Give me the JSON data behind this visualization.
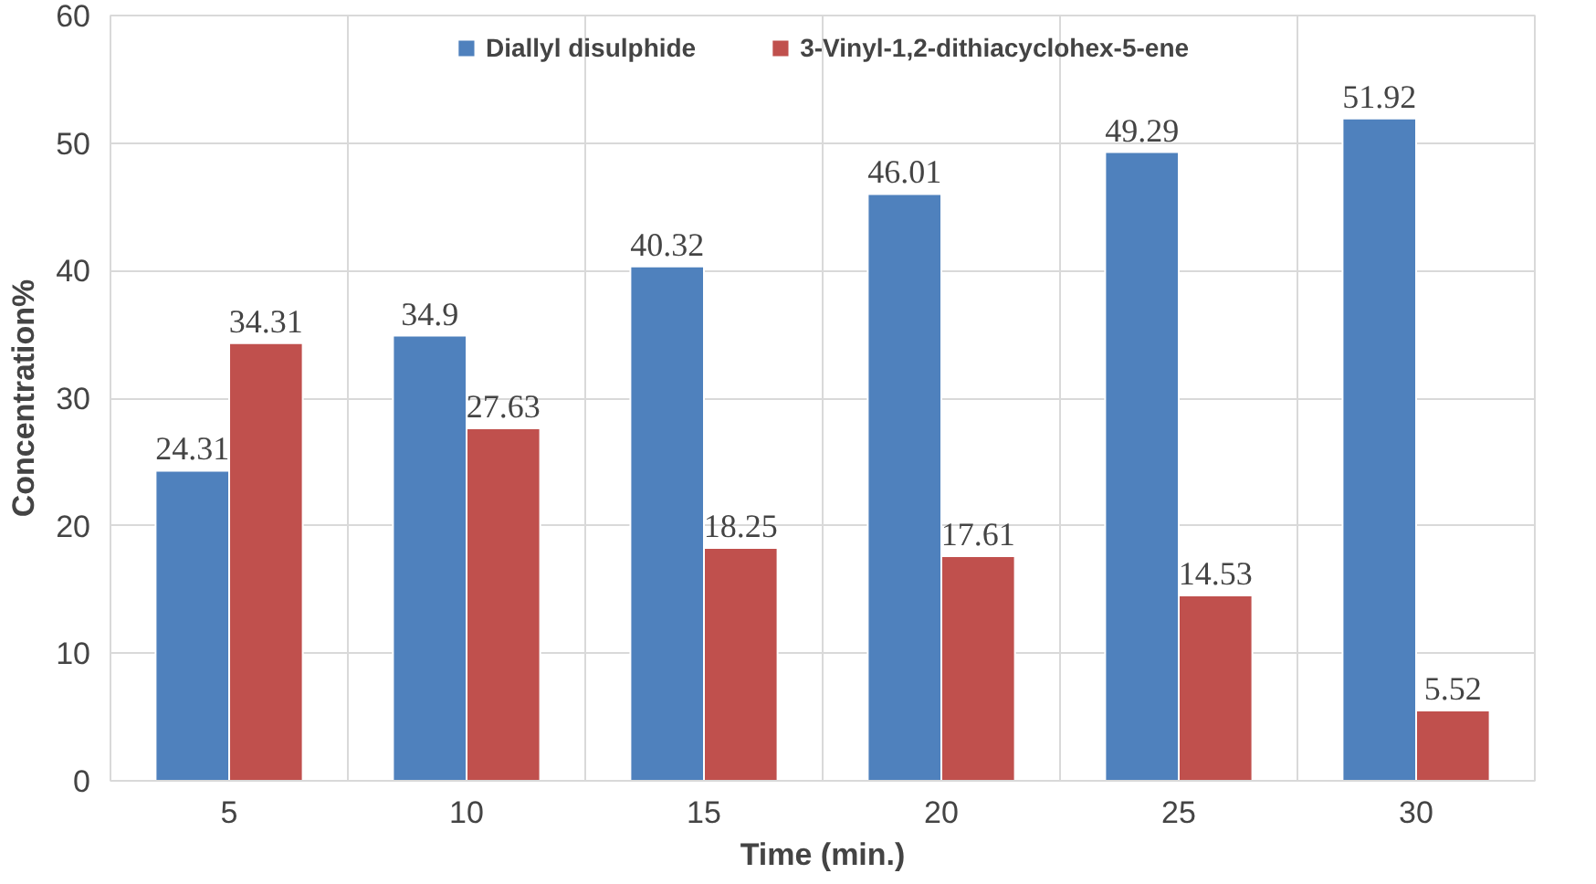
{
  "chart_data": {
    "type": "bar",
    "xlabel": "Time (min.)",
    "ylabel": "Concentration%",
    "categories": [
      "5",
      "10",
      "15",
      "20",
      "25",
      "30"
    ],
    "series": [
      {
        "name": "Diallyl disulphide",
        "color": "#4f81bd",
        "values": [
          24.31,
          34.9,
          40.32,
          46.01,
          49.29,
          51.92
        ]
      },
      {
        "name": "3-Vinyl-1,2-dithiacyclohex-5-ene",
        "color": "#c0504d",
        "values": [
          34.31,
          27.63,
          18.25,
          17.61,
          14.53,
          5.52
        ]
      }
    ],
    "ylim": [
      0,
      60
    ],
    "yticks": [
      0,
      10,
      20,
      30,
      40,
      50,
      60
    ],
    "grid": true,
    "legend": "top",
    "data_labels": true
  }
}
